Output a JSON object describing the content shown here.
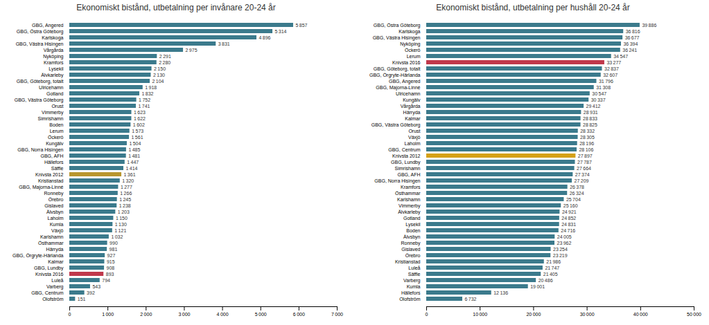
{
  "chart_data": [
    {
      "type": "bar",
      "orientation": "horizontal",
      "title": "Ekonomiskt bistånd, utbetalning per invånare 20-24 år",
      "categories": [
        "GBG, Angered",
        "GBG, Östra Göteborg",
        "Karlskoga",
        "GBG, Västra Hisingen",
        "Vårgårda",
        "Nyköping",
        "Kramfors",
        "Lysekil",
        "Älvkarleby",
        "GBG, Göteborg, totalt",
        "Ulricehamn",
        "Gotland",
        "GBG, Västra Göteborg",
        "Orust",
        "Vimmerby",
        "Simrishamn",
        "Boden",
        "Lerum",
        "Öckerö",
        "Kungälv",
        "GBG, Norra Hisingen",
        "GBG, AFH",
        "Hällefors",
        "Säffle",
        "Knivsta 2012",
        "Kristianstad",
        "GBG, Majorna-Linné",
        "Ronneby",
        "Örebro",
        "Gislaved",
        "Älvsbyn",
        "Laholm",
        "Kumla",
        "Växjö",
        "Karlshamn",
        "Östhammar",
        "Härryda",
        "GBG, Örgryte-Härlanda",
        "Kalmar",
        "GBG, Lundby",
        "Knivsta 2016",
        "Luleå",
        "Varberg",
        "GBG, Centrum",
        "Olofström"
      ],
      "values": [
        5857,
        5314,
        4896,
        3831,
        2975,
        2291,
        2280,
        2150,
        2130,
        2104,
        1918,
        1832,
        1752,
        1741,
        1623,
        1622,
        1602,
        1573,
        1561,
        1504,
        1485,
        1481,
        1447,
        1414,
        1361,
        1320,
        1277,
        1266,
        1245,
        1238,
        1203,
        1150,
        1130,
        1121,
        1032,
        990,
        981,
        927,
        915,
        908,
        893,
        794,
        543,
        392,
        151
      ],
      "value_labels": [
        "5 857",
        "5 314",
        "4 896",
        "3 831",
        "2 975",
        "2 291",
        "2 280",
        "2 150",
        "2 130",
        "2 104",
        "1 918",
        "1 832",
        "1 752",
        "1 741",
        "1 623",
        "1 622",
        "1 602",
        "1 573",
        "1 561",
        "1 504",
        "1 485",
        "1 481",
        "1 447",
        "1 414",
        "1 361",
        "1 320",
        "1 277",
        "1 266",
        "1 245",
        "1 238",
        "1 203",
        "1 150",
        "1 130",
        "1 121",
        "1 032",
        "990",
        "981",
        "927",
        "915",
        "908",
        "893",
        "794",
        "543",
        "392",
        "151"
      ],
      "colors": [
        "#3B7A8C",
        "#3B7A8C",
        "#3B7A8C",
        "#3B7A8C",
        "#3B7A8C",
        "#3B7A8C",
        "#3B7A8C",
        "#3B7A8C",
        "#3B7A8C",
        "#3B7A8C",
        "#3B7A8C",
        "#3B7A8C",
        "#3B7A8C",
        "#3B7A8C",
        "#3B7A8C",
        "#3B7A8C",
        "#3B7A8C",
        "#3B7A8C",
        "#3B7A8C",
        "#3B7A8C",
        "#3B7A8C",
        "#3B7A8C",
        "#3B7A8C",
        "#3B7A8C",
        "#B8962E",
        "#3B7A8C",
        "#3B7A8C",
        "#3B7A8C",
        "#3B7A8C",
        "#3B7A8C",
        "#3B7A8C",
        "#3B7A8C",
        "#3B7A8C",
        "#3B7A8C",
        "#3B7A8C",
        "#3B7A8C",
        "#3B7A8C",
        "#3B7A8C",
        "#3B7A8C",
        "#3B7A8C",
        "#C0384B",
        "#3B7A8C",
        "#3B7A8C",
        "#3B7A8C",
        "#3B7A8C"
      ],
      "xlim": [
        0,
        7000
      ],
      "xticks": [
        0,
        {
          "value": 1000,
          "label": "1 000"
        },
        {
          "value": 2000,
          "label": "2 000"
        },
        {
          "value": 3000,
          "label": "3 000"
        },
        {
          "value": 4000,
          "label": "4 000"
        },
        {
          "value": 5000,
          "label": "5 000"
        },
        {
          "value": 6000,
          "label": "6 000"
        },
        {
          "value": 7000,
          "label": "7 000"
        }
      ],
      "data_labels": true,
      "grid": false
    },
    {
      "type": "bar",
      "orientation": "horizontal",
      "title": "Ekonomiskt bistånd, utbetalning per hushåll 20-24 år",
      "categories": [
        "GBG, Östra Göteborg",
        "Karlskoga",
        "GBG, Västra Hisingen",
        "Nyköping",
        "Öckerö",
        "Lerum",
        "Knivsta 2016",
        "GBG, Göteborg, totalt",
        "GBG, Örgryte-Härlanda",
        "GBG, Angered",
        "GBG, Majorna-Linné",
        "Ulricehamn",
        "Kungälv",
        "Vårgårda",
        "Härryda",
        "Kalmar",
        "GBG, Västra Göteborg",
        "Orust",
        "Växjö",
        "Laholm",
        "GBG, Centrum",
        "Knivsta 2012",
        "GBG, Lundby",
        "Simrishamn",
        "GBG, AFH",
        "GBG, Norra Hisingen",
        "Kramfors",
        "Östhammar",
        "Karlshamn",
        "Vimmerby",
        "Älvkarleby",
        "Gotland",
        "Lysekil",
        "Boden",
        "Älvsbyn",
        "Ronneby",
        "Gislaved",
        "Örebro",
        "Kristianstad",
        "Luleå",
        "Säffle",
        "Varberg",
        "Kumla",
        "Hällefors",
        "Olofström"
      ],
      "values": [
        39886,
        36816,
        36677,
        36394,
        36241,
        34547,
        33277,
        32837,
        32607,
        31796,
        31308,
        30547,
        30337,
        29412,
        28931,
        28833,
        28825,
        28332,
        28305,
        28196,
        28106,
        27897,
        27787,
        27664,
        27374,
        27209,
        26378,
        26324,
        25704,
        25160,
        24921,
        24852,
        24831,
        24716,
        24005,
        23962,
        23254,
        23219,
        21986,
        21747,
        21405,
        20486,
        19001,
        12136,
        6732
      ],
      "value_labels": [
        "39 886",
        "36 816",
        "36 677",
        "36 394",
        "36 241",
        "34 547",
        "33 277",
        "32 837",
        "32 607",
        "31 796",
        "31 308",
        "30 547",
        "30 337",
        "29 412",
        "28 931",
        "28 833",
        "28 825",
        "28 332",
        "28 305",
        "28 196",
        "28 106",
        "27 897",
        "27 787",
        "27 664",
        "27 374",
        "27 209",
        "26 378",
        "26 324",
        "25 704",
        "25 160",
        "24 921",
        "24 852",
        "24 831",
        "24 716",
        "24 005",
        "23 962",
        "23 254",
        "23 219",
        "21 986",
        "21 747",
        "21 405",
        "20 486",
        "19 001",
        "12 136",
        "6 732"
      ],
      "colors": [
        "#3B7A8C",
        "#3B7A8C",
        "#3B7A8C",
        "#3B7A8C",
        "#3B7A8C",
        "#3B7A8C",
        "#C0384B",
        "#3B7A8C",
        "#3B7A8C",
        "#3B7A8C",
        "#3B7A8C",
        "#3B7A8C",
        "#3B7A8C",
        "#3B7A8C",
        "#3B7A8C",
        "#3B7A8C",
        "#3B7A8C",
        "#3B7A8C",
        "#3B7A8C",
        "#3B7A8C",
        "#3B7A8C",
        "#D4A017",
        "#3B7A8C",
        "#3B7A8C",
        "#3B7A8C",
        "#3B7A8C",
        "#3B7A8C",
        "#3B7A8C",
        "#3B7A8C",
        "#3B7A8C",
        "#3B7A8C",
        "#3B7A8C",
        "#3B7A8C",
        "#3B7A8C",
        "#3B7A8C",
        "#3B7A8C",
        "#3B7A8C",
        "#3B7A8C",
        "#3B7A8C",
        "#3B7A8C",
        "#3B7A8C",
        "#3B7A8C",
        "#3B7A8C",
        "#3B7A8C",
        "#3B7A8C"
      ],
      "xlim": [
        0,
        50000
      ],
      "xticks": [
        0,
        {
          "value": 10000,
          "label": "10 000"
        },
        {
          "value": 20000,
          "label": "20 000"
        },
        {
          "value": 30000,
          "label": "30 000"
        },
        {
          "value": 40000,
          "label": "40 000"
        },
        {
          "value": 50000,
          "label": "50 000"
        }
      ],
      "data_labels": true,
      "grid": false
    }
  ]
}
